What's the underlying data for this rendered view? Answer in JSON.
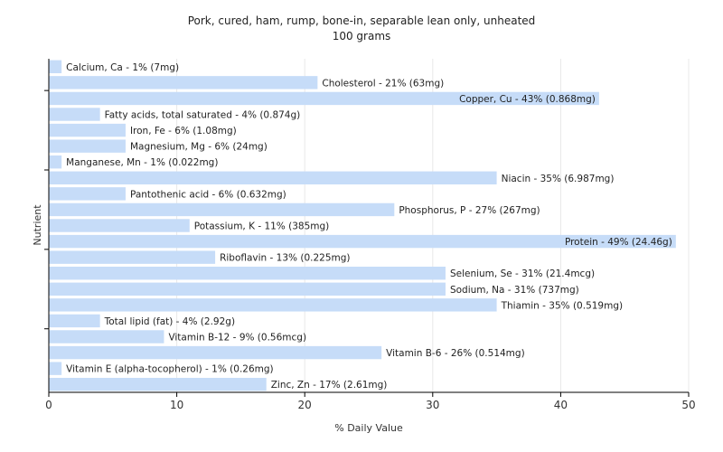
{
  "chart_data": {
    "type": "bar",
    "orientation": "horizontal",
    "title": "Pork, cured, ham, rump, bone-in, separable lean only, unheated",
    "subtitle": "100 grams",
    "xlabel": "% Daily Value",
    "ylabel": "Nutrient",
    "xlim": [
      0,
      50
    ],
    "xticks": [
      "0",
      "10",
      "20",
      "30",
      "40",
      "50"
    ],
    "grid": true,
    "bar_color": "#c6dcf8",
    "categories": [
      "Calcium, Ca",
      "Cholesterol",
      "Copper, Cu",
      "Fatty acids, total saturated",
      "Iron, Fe",
      "Magnesium, Mg",
      "Manganese, Mn",
      "Niacin",
      "Pantothenic acid",
      "Phosphorus, P",
      "Potassium, K",
      "Protein",
      "Riboflavin",
      "Selenium, Se",
      "Sodium, Na",
      "Thiamin",
      "Total lipid (fat)",
      "Vitamin B-12",
      "Vitamin B-6",
      "Vitamin E (alpha-tocopherol)",
      "Zinc, Zn"
    ],
    "values": [
      1,
      21,
      43,
      4,
      6,
      6,
      1,
      35,
      6,
      27,
      11,
      49,
      13,
      31,
      31,
      35,
      4,
      9,
      26,
      1,
      17
    ],
    "labels": [
      "Calcium, Ca - 1% (7mg)",
      "Cholesterol - 21% (63mg)",
      "Copper, Cu - 43% (0.868mg)",
      "Fatty acids, total saturated - 4% (0.874g)",
      "Iron, Fe - 6% (1.08mg)",
      "Magnesium, Mg - 6% (24mg)",
      "Manganese, Mn - 1% (0.022mg)",
      "Niacin - 35% (6.987mg)",
      "Pantothenic acid - 6% (0.632mg)",
      "Phosphorus, P - 27% (267mg)",
      "Potassium, K - 11% (385mg)",
      "Protein - 49% (24.46g)",
      "Riboflavin - 13% (0.225mg)",
      "Selenium, Se - 31% (21.4mcg)",
      "Sodium, Na - 31% (737mg)",
      "Thiamin - 35% (0.519mg)",
      "Total lipid (fat) - 4% (2.92g)",
      "Vitamin B-12 - 9% (0.56mcg)",
      "Vitamin B-6 - 26% (0.514mg)",
      "Vitamin E (alpha-tocopherol) - 1% (0.26mg)",
      "Zinc, Zn - 17% (2.61mg)"
    ]
  }
}
